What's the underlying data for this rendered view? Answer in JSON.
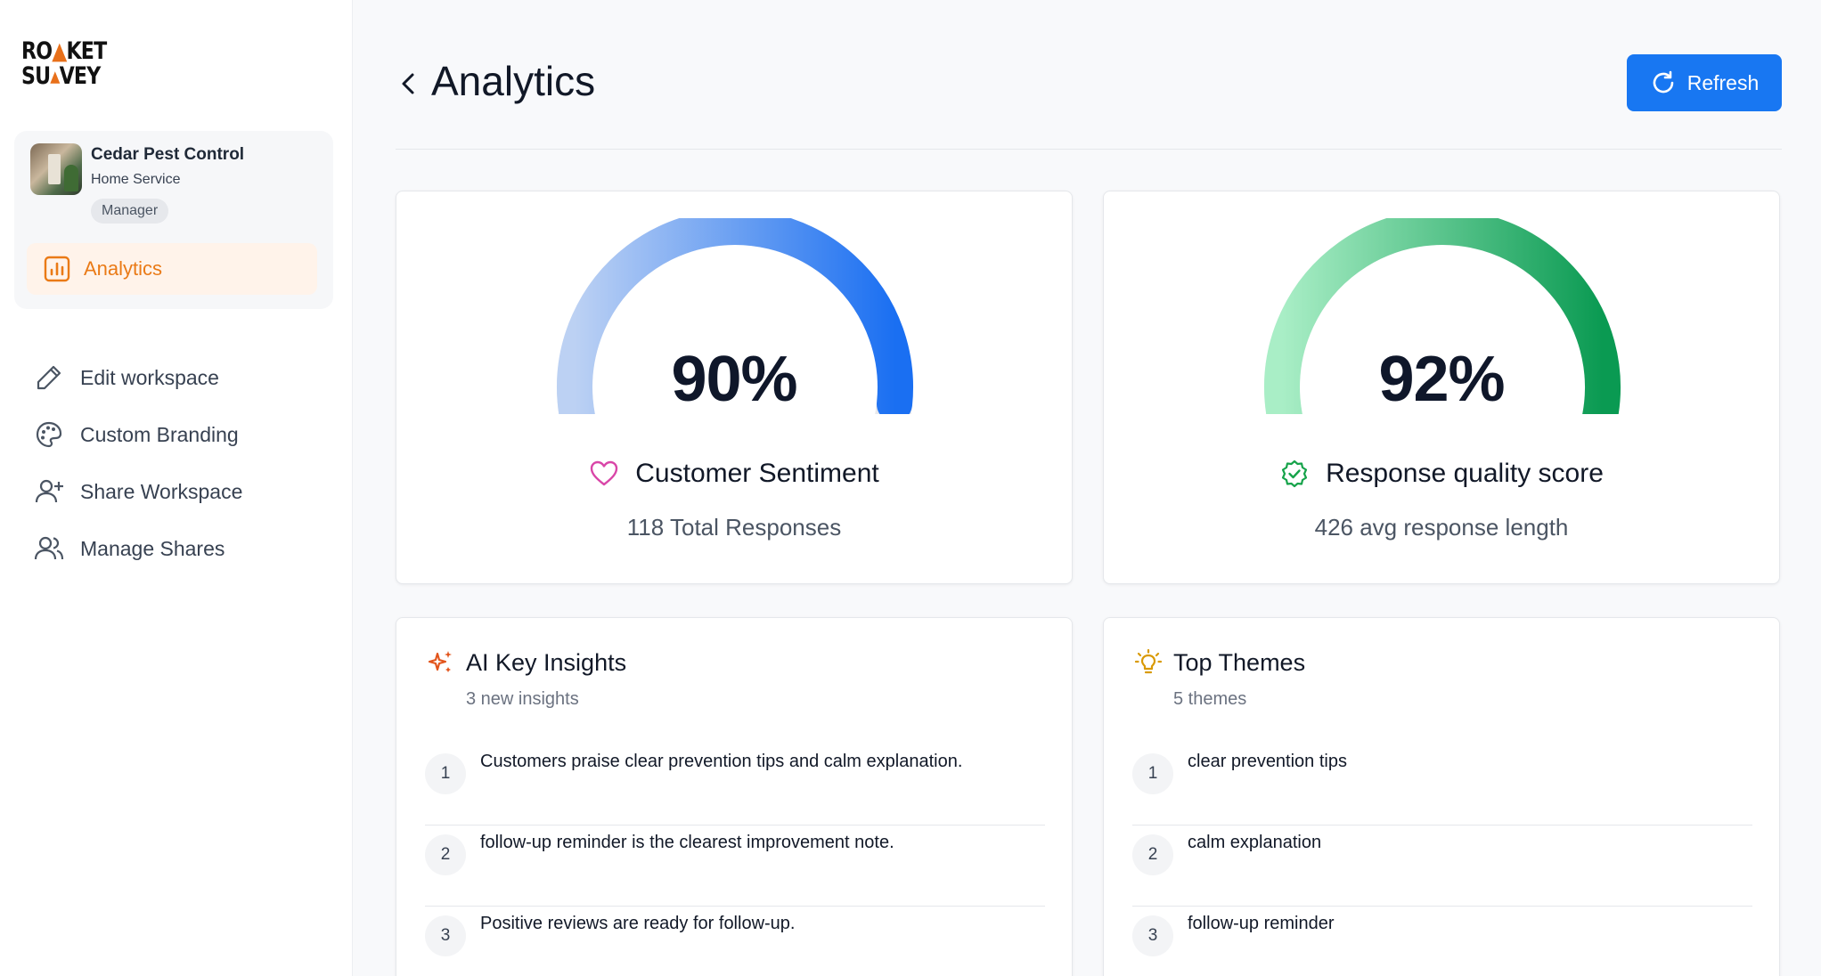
{
  "brand": {
    "logo_line1_a": "RO",
    "logo_line1_b": "KET",
    "logo_line2_a": "SU",
    "logo_line2_b": "VEY",
    "accent": "#ea7a16"
  },
  "workspace": {
    "name": "Cedar Pest Control",
    "type": "Home Service",
    "role": "Manager",
    "active_nav_label": "Analytics"
  },
  "sidebar": {
    "items": [
      {
        "label": "Edit workspace",
        "icon": "pencil-icon"
      },
      {
        "label": "Custom Branding",
        "icon": "palette-icon"
      },
      {
        "label": "Share Workspace",
        "icon": "user-plus-icon"
      },
      {
        "label": "Manage Shares",
        "icon": "users-icon"
      }
    ]
  },
  "header": {
    "title": "Analytics",
    "refresh_label": "Refresh",
    "button_color": "#1877f2"
  },
  "metrics": [
    {
      "value_text": "90%",
      "value": 90,
      "label": "Customer Sentiment",
      "sub": "118 Total Responses",
      "icon": "heart-icon",
      "gradient": [
        "#b9d0f6",
        "#1a6ff2"
      ]
    },
    {
      "value_text": "92%",
      "value": 92,
      "label": "Response quality score",
      "sub": "426 avg response length",
      "icon": "badge-check-icon",
      "gradient": [
        "#a7efc7",
        "#0a9a52"
      ]
    }
  ],
  "insights": {
    "title": "AI Key Insights",
    "subtitle": "3 new insights",
    "items": [
      "Customers praise clear prevention tips and calm explanation.",
      "follow-up reminder is the clearest improvement note.",
      "Positive reviews are ready for follow-up."
    ]
  },
  "themes": {
    "title": "Top Themes",
    "subtitle": "5 themes",
    "items": [
      "clear prevention tips",
      "calm explanation",
      "follow-up reminder"
    ]
  },
  "row_numbers": [
    "1",
    "2",
    "3"
  ]
}
